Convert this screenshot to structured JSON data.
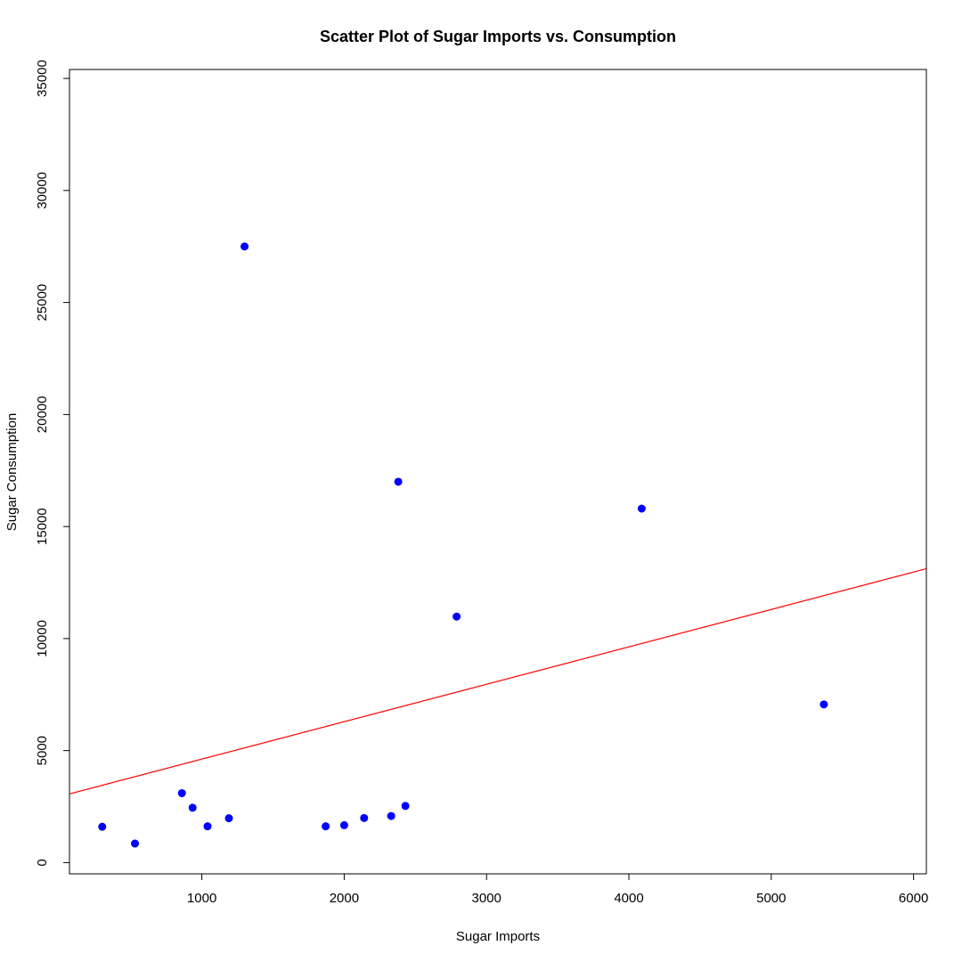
{
  "chart_data": {
    "type": "scatter",
    "title": "Scatter Plot of Sugar Imports vs. Consumption",
    "xlabel": "Sugar Imports",
    "ylabel": "Sugar Consumption",
    "xlim": [
      70,
      6090
    ],
    "ylim": [
      -500,
      35400
    ],
    "x_ticks": [
      1000,
      2000,
      3000,
      4000,
      5000,
      6000
    ],
    "y_ticks": [
      0,
      5000,
      10000,
      15000,
      20000,
      25000,
      30000,
      35000
    ],
    "grid": false,
    "points": [
      {
        "x": 300,
        "y": 1600
      },
      {
        "x": 530,
        "y": 850
      },
      {
        "x": 860,
        "y": 3100
      },
      {
        "x": 935,
        "y": 2450
      },
      {
        "x": 1040,
        "y": 1620
      },
      {
        "x": 1190,
        "y": 1980
      },
      {
        "x": 1300,
        "y": 27500
      },
      {
        "x": 1870,
        "y": 1620
      },
      {
        "x": 2000,
        "y": 1670
      },
      {
        "x": 2140,
        "y": 1990
      },
      {
        "x": 2330,
        "y": 2080
      },
      {
        "x": 2380,
        "y": 17000
      },
      {
        "x": 2430,
        "y": 2530
      },
      {
        "x": 2790,
        "y": 10980
      },
      {
        "x": 4090,
        "y": 15800
      },
      {
        "x": 5370,
        "y": 7060
      }
    ],
    "fit_line": {
      "intercept": 2950,
      "slope": 1.67,
      "color": "#ff0000"
    },
    "point_color": "#0000ff"
  }
}
